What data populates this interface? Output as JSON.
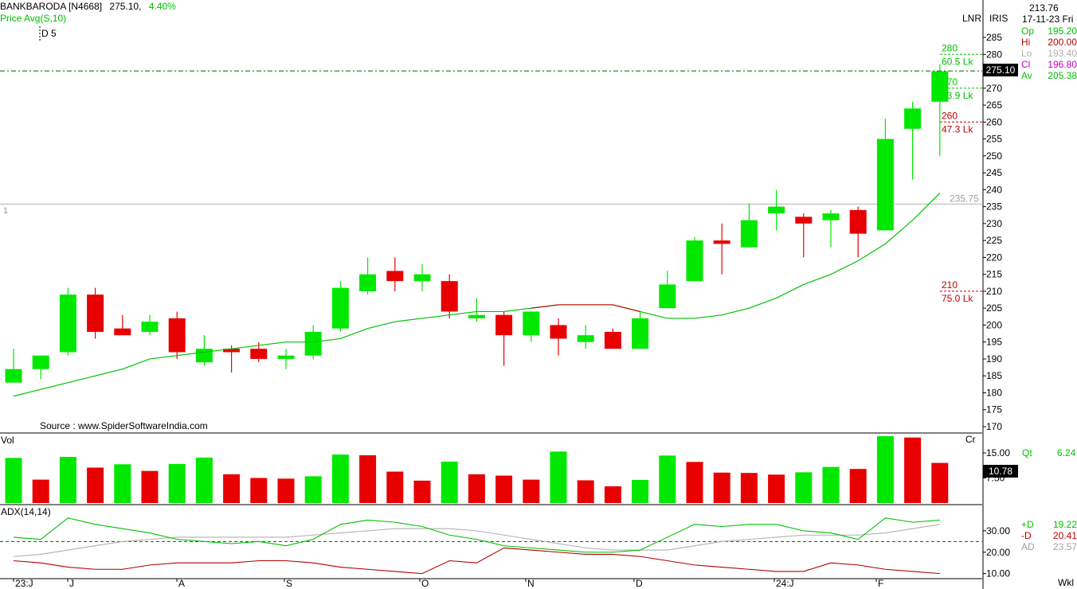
{
  "header": {
    "symbol": "BANKBARODA [N4668]",
    "last": "275.10,",
    "change": "4.40%",
    "indicator": "Price  Avg(S,10)",
    "marker": "D 5",
    "source": "Source : www.SpiderSoftwareIndia.com",
    "pane_index": "1"
  },
  "right_panel": {
    "value": "213.76",
    "date": "17-11-23 Fri",
    "lnr": "LNR",
    "iris": "IRIS",
    "rows": [
      {
        "k": "Op",
        "v": "195.20",
        "color": "#00c000"
      },
      {
        "k": "Hi",
        "v": "200.00",
        "color": "#c00000"
      },
      {
        "k": "Lo",
        "v": "193.40",
        "color": "#b0b0b0"
      },
      {
        "k": "Cl",
        "v": "196.80",
        "color": "#c000c0"
      },
      {
        "k": "Av",
        "v": "205.38",
        "color": "#00c000"
      }
    ],
    "price_tag": "275.10",
    "qt_label": "Qt",
    "qt_value": "6.24",
    "vol_tag": "10.78",
    "cr": "Cr",
    "adx": [
      {
        "k": "+D",
        "v": "19.22",
        "color": "#00c000"
      },
      {
        "k": "-D",
        "v": "20.41",
        "color": "#c00000"
      },
      {
        "k": "AD",
        "v": "23.57",
        "color": "#a0a0a0"
      }
    ],
    "wkl": "Wkl"
  },
  "annotations": [
    {
      "price": 280,
      "text": "280",
      "sub": "60.5 Lk",
      "color": "#00c000"
    },
    {
      "price": 270,
      "text": "270",
      "sub": "53.9 Lk",
      "color": "#00c000"
    },
    {
      "price": 260,
      "text": "260",
      "sub": "47.3 Lk",
      "color": "#c00000"
    },
    {
      "price": 210,
      "text": "210",
      "sub": "75.0 Lk",
      "color": "#c00000"
    }
  ],
  "hline_label": "235.75",
  "vol_label": "Vol",
  "adx_label": "ADX(14,14)",
  "x_labels": [
    "23:J",
    "J",
    "A",
    "S",
    "O",
    "N",
    "D",
    "24:J",
    "F"
  ],
  "chart_data": {
    "type": "candlestick",
    "price_ticks": [
      285,
      280,
      275,
      270,
      265,
      260,
      255,
      250,
      245,
      240,
      235,
      230,
      225,
      220,
      215,
      210,
      205,
      200,
      195,
      190,
      185,
      180,
      175,
      170
    ],
    "vol_ticks": [
      "15.00",
      "7.50"
    ],
    "adx_ticks": [
      "30.00",
      "20.00",
      "10.00"
    ],
    "candles": [
      {
        "o": 183,
        "h": 193,
        "l": 183,
        "c": 187
      },
      {
        "o": 187,
        "h": 191,
        "l": 184,
        "c": 191
      },
      {
        "o": 192,
        "h": 211,
        "l": 191,
        "c": 209
      },
      {
        "o": 209,
        "h": 211,
        "l": 196,
        "c": 198
      },
      {
        "o": 199,
        "h": 203,
        "l": 197,
        "c": 197
      },
      {
        "o": 198,
        "h": 203,
        "l": 197,
        "c": 201
      },
      {
        "o": 202,
        "h": 204,
        "l": 190,
        "c": 192
      },
      {
        "o": 189,
        "h": 197,
        "l": 188,
        "c": 193
      },
      {
        "o": 193,
        "h": 194,
        "l": 186,
        "c": 192
      },
      {
        "o": 193,
        "h": 195,
        "l": 189,
        "c": 190
      },
      {
        "o": 190,
        "h": 193,
        "l": 187,
        "c": 191
      },
      {
        "o": 191,
        "h": 200,
        "l": 190,
        "c": 198
      },
      {
        "o": 199,
        "h": 213,
        "l": 198,
        "c": 211
      },
      {
        "o": 210,
        "h": 220,
        "l": 209,
        "c": 215
      },
      {
        "o": 216,
        "h": 220,
        "l": 210,
        "c": 213
      },
      {
        "o": 213,
        "h": 218,
        "l": 210,
        "c": 215
      },
      {
        "o": 213,
        "h": 215,
        "l": 202,
        "c": 204
      },
      {
        "o": 202,
        "h": 208,
        "l": 201,
        "c": 203
      },
      {
        "o": 203,
        "h": 204,
        "l": 188,
        "c": 197
      },
      {
        "o": 197,
        "h": 204,
        "l": 195,
        "c": 204
      },
      {
        "o": 200,
        "h": 202,
        "l": 191,
        "c": 196
      },
      {
        "o": 195,
        "h": 200,
        "l": 193,
        "c": 197
      },
      {
        "o": 198,
        "h": 199,
        "l": 193,
        "c": 193
      },
      {
        "o": 193,
        "h": 204,
        "l": 193,
        "c": 202
      },
      {
        "o": 205,
        "h": 216,
        "l": 205,
        "c": 212
      },
      {
        "o": 213,
        "h": 226,
        "l": 213,
        "c": 225
      },
      {
        "o": 225,
        "h": 230,
        "l": 215,
        "c": 224
      },
      {
        "o": 223,
        "h": 236,
        "l": 223,
        "c": 231
      },
      {
        "o": 233,
        "h": 240,
        "l": 228,
        "c": 235
      },
      {
        "o": 232,
        "h": 233,
        "l": 220,
        "c": 230
      },
      {
        "o": 231,
        "h": 234,
        "l": 223,
        "c": 233
      },
      {
        "o": 234,
        "h": 235,
        "l": 220,
        "c": 227
      },
      {
        "o": 228,
        "h": 261,
        "l": 228,
        "c": 255
      },
      {
        "o": 258,
        "h": 266,
        "l": 243,
        "c": 264
      },
      {
        "o": 266,
        "h": 277,
        "l": 250,
        "c": 275
      }
    ],
    "ma": [
      179,
      181,
      183,
      185,
      187,
      190,
      191,
      192,
      193,
      194,
      195,
      195,
      196,
      199,
      201,
      202,
      203,
      204,
      204,
      205,
      206,
      206,
      206,
      204,
      202,
      202,
      203,
      205,
      208,
      212,
      215,
      219,
      224,
      231,
      239
    ],
    "volume": [
      13.5,
      7.0,
      13.8,
      10.6,
      11.6,
      9.6,
      11.7,
      13.6,
      8.6,
      7.5,
      7.3,
      8.0,
      14.5,
      14.3,
      9.4,
      6.7,
      12.4,
      8.6,
      8.2,
      7.0,
      15.4,
      6.8,
      5.0,
      6.9,
      14.2,
      12.3,
      9.1,
      9.0,
      8.5,
      9.2,
      10.8,
      10.2,
      20.0,
      19.6,
      12.0
    ],
    "volume_up": [
      true,
      false,
      true,
      false,
      true,
      false,
      true,
      true,
      false,
      false,
      false,
      true,
      true,
      false,
      false,
      false,
      true,
      false,
      false,
      false,
      true,
      false,
      false,
      true,
      true,
      false,
      false,
      false,
      false,
      true,
      true,
      false,
      true,
      false,
      false
    ],
    "adx_plus": [
      27,
      26,
      36,
      33,
      31,
      29,
      26,
      25,
      24,
      25,
      23,
      26,
      33,
      35,
      34,
      32,
      28,
      26,
      23,
      22,
      21,
      20,
      20,
      21,
      27,
      33,
      32,
      33,
      33,
      30,
      29,
      26,
      36,
      34,
      35
    ],
    "adx_minus": [
      16,
      15,
      13,
      12,
      12,
      14,
      15,
      15,
      15,
      16,
      16,
      15,
      13,
      12,
      11,
      10,
      16,
      15,
      22,
      21,
      20,
      19,
      19,
      18,
      16,
      14,
      13,
      12,
      11,
      11,
      15,
      14,
      12,
      11,
      10
    ],
    "adx_ad": [
      18,
      19,
      21,
      23,
      25,
      26,
      27,
      27,
      27,
      27,
      27,
      28,
      29,
      30,
      31,
      31,
      31,
      30,
      28,
      26,
      24,
      22,
      21,
      21,
      21,
      23,
      25,
      26,
      27,
      28,
      28,
      28,
      29,
      31,
      33
    ]
  }
}
